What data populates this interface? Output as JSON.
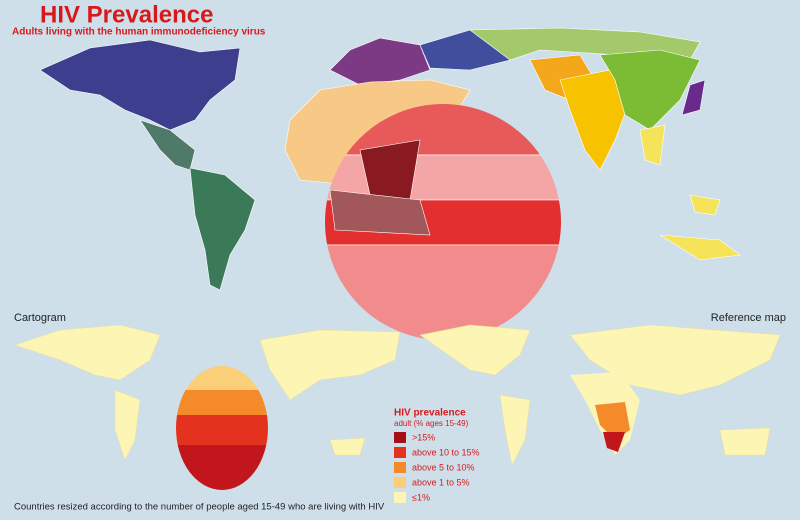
{
  "header": {
    "title": "HIV Prevalence",
    "subtitle": "Adults living with the human immunodeficiency virus"
  },
  "panels": {
    "cartogram": "Cartogram",
    "reference": "Reference map"
  },
  "legend": {
    "title": "HIV prevalence",
    "subtitle": "adult (% ages 15-49)",
    "items": [
      {
        "label": ">15%",
        "color": "#a50f15"
      },
      {
        "label": "above 10 to 15%",
        "color": "#e3331f"
      },
      {
        "label": "above 5 to 10%",
        "color": "#f58a2a"
      },
      {
        "label": "above 1 to 5%",
        "color": "#fbcf78"
      },
      {
        "label": "≤1%",
        "color": "#fdf5b4"
      }
    ]
  },
  "footer": "Countries resized according to the number of people aged 15-49 who are living with HIV"
}
